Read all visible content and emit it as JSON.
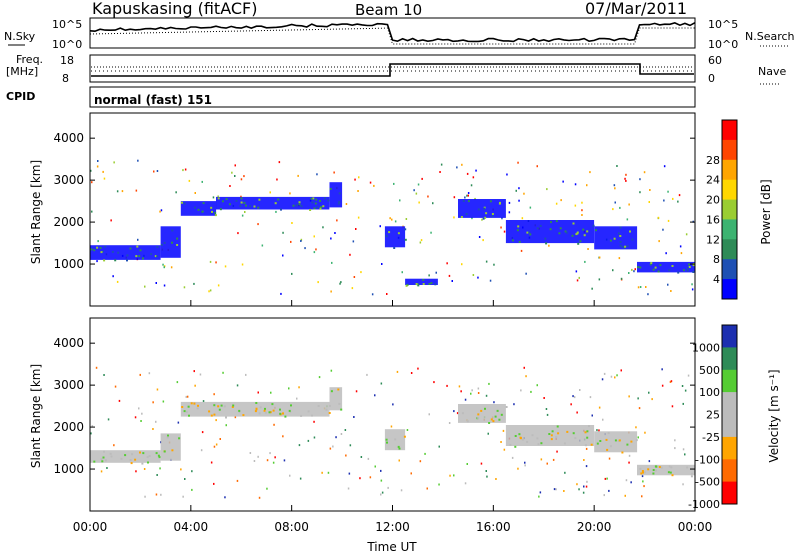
{
  "header": {
    "station": "Kapuskasing (fitACF)",
    "beam": "Beam 10",
    "date": "07/Mar/2011"
  },
  "strip_labels": {
    "nsky": "N.Sky",
    "nsearch": "N.Search",
    "freq": "Freq.",
    "freq_unit": "[MHz]",
    "nave": "Nave",
    "cpid": "CPID",
    "cpid_value": "normal (fast) 151",
    "nsky_top": "10^5",
    "nsky_bottom": "10^0",
    "nsearch_top": "10^5",
    "nsearch_bottom": "10^0",
    "freq_top": "18",
    "freq_bottom": "8",
    "nave_top": "60",
    "nave_bottom": "0"
  },
  "colors": {
    "power_scale": [
      "#0000ff",
      "#1e50b4",
      "#2e8b57",
      "#3cb371",
      "#9acd32",
      "#ffd700",
      "#ffa500",
      "#ff4500",
      "#ff0000"
    ],
    "velocity_scale": [
      "#1c2fb0",
      "#2e8b57",
      "#55cc33",
      "#bcbcbc",
      "#bcbcbc",
      "#ffa500",
      "#ff6a00",
      "#ff0000"
    ]
  },
  "chart_data": [
    {
      "type": "heatmap",
      "panel": "power",
      "ylabel": "Slant Range [km]",
      "ylim": [
        0,
        4600
      ],
      "yticks": [
        "1000",
        "2000",
        "3000",
        "4000"
      ],
      "colorbar_label": "Power [dB]",
      "colorbar_ticks": [
        "4",
        "8",
        "12",
        "16",
        "20",
        "24",
        "28"
      ],
      "bands": [
        {
          "x0": 0.0,
          "x1": 2.8,
          "r0": 1100,
          "r1": 1450
        },
        {
          "x0": 2.8,
          "x1": 3.6,
          "r0": 1150,
          "r1": 1900
        },
        {
          "x0": 3.6,
          "x1": 5.0,
          "r0": 2150,
          "r1": 2500
        },
        {
          "x0": 5.0,
          "x1": 9.5,
          "r0": 2300,
          "r1": 2600
        },
        {
          "x0": 9.5,
          "x1": 10.0,
          "r0": 2350,
          "r1": 2950
        },
        {
          "x0": 11.7,
          "x1": 12.5,
          "r0": 1400,
          "r1": 1900
        },
        {
          "x0": 12.5,
          "x1": 13.8,
          "r0": 500,
          "r1": 650
        },
        {
          "x0": 14.6,
          "x1": 16.5,
          "r0": 2100,
          "r1": 2550
        },
        {
          "x0": 16.5,
          "x1": 20.0,
          "r0": 1500,
          "r1": 2050
        },
        {
          "x0": 20.0,
          "x1": 21.7,
          "r0": 1350,
          "r1": 1900
        },
        {
          "x0": 21.7,
          "x1": 24.0,
          "r0": 800,
          "r1": 1050
        }
      ]
    },
    {
      "type": "heatmap",
      "panel": "velocity",
      "xlabel": "Time UT",
      "ylabel": "Slant Range [km]",
      "ylim": [
        0,
        4600
      ],
      "xlim": [
        0,
        24
      ],
      "xticks": [
        "00:00",
        "04:00",
        "08:00",
        "12:00",
        "16:00",
        "20:00",
        "00:00"
      ],
      "yticks": [
        "1000",
        "2000",
        "3000",
        "4000"
      ],
      "colorbar_label": "Velocity [m s⁻¹]",
      "colorbar_ticks": [
        "1000",
        "500",
        "100",
        "25",
        "-25",
        "-100",
        "-500",
        "-1000"
      ],
      "bands": [
        {
          "x0": 0.0,
          "x1": 2.8,
          "r0": 1150,
          "r1": 1450
        },
        {
          "x0": 2.8,
          "x1": 3.6,
          "r0": 1200,
          "r1": 1850
        },
        {
          "x0": 3.6,
          "x1": 9.5,
          "r0": 2250,
          "r1": 2600
        },
        {
          "x0": 9.5,
          "x1": 10.0,
          "r0": 2400,
          "r1": 2950
        },
        {
          "x0": 11.7,
          "x1": 12.5,
          "r0": 1450,
          "r1": 1950
        },
        {
          "x0": 14.6,
          "x1": 16.5,
          "r0": 2100,
          "r1": 2550
        },
        {
          "x0": 16.5,
          "x1": 20.0,
          "r0": 1550,
          "r1": 2050
        },
        {
          "x0": 20.0,
          "x1": 21.7,
          "r0": 1400,
          "r1": 1900
        },
        {
          "x0": 21.7,
          "x1": 24.0,
          "r0": 850,
          "r1": 1100
        }
      ]
    }
  ]
}
